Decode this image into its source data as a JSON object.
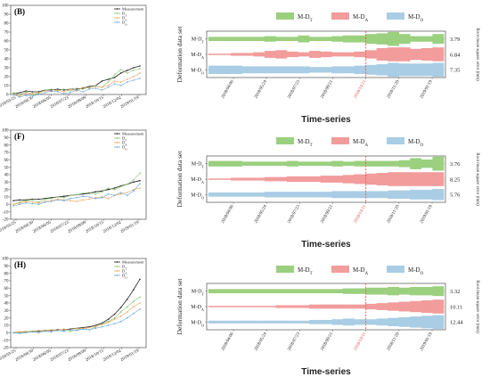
{
  "chart_data": [
    {
      "type": "line",
      "panel_label": "(B)",
      "ylim": [
        0,
        100
      ],
      "yticks": [
        0,
        10,
        20,
        30,
        40,
        50,
        60,
        70,
        80,
        90,
        100
      ],
      "x_ticks": [
        "2018/03/25",
        "2018/04/30",
        "2018/06/05",
        "2018/07/23",
        "2018/09/09",
        "2018/10/15",
        "2018/12/02",
        "2019/01/19"
      ],
      "legend_pos": "top-right",
      "series": [
        {
          "name": "Measurement",
          "color": "#222222",
          "values": [
            1,
            2,
            4,
            3,
            3,
            5,
            5,
            6,
            5,
            6,
            6,
            7,
            9,
            10,
            15,
            17,
            19,
            24,
            27,
            30,
            32
          ]
        },
        {
          "name": "D_T",
          "color": "#8cc06e",
          "values": [
            2,
            0,
            3,
            0,
            1,
            5,
            6,
            4,
            6,
            4,
            7,
            6,
            8,
            10,
            8,
            14,
            22,
            28,
            24,
            27,
            29
          ]
        },
        {
          "name": "D_A",
          "color": "#e8a35a",
          "values": [
            1,
            -2,
            2,
            1,
            2,
            4,
            3,
            5,
            3,
            6,
            4,
            8,
            7,
            9,
            8,
            10,
            15,
            14,
            17,
            20,
            24
          ]
        },
        {
          "name": "D_O",
          "color": "#6aa8d8",
          "values": [
            0,
            -3,
            -1,
            -2,
            0,
            2,
            4,
            3,
            1,
            2,
            5,
            3,
            6,
            7,
            5,
            8,
            12,
            10,
            14,
            16,
            18
          ]
        }
      ]
    },
    {
      "type": "line",
      "panel_label": "(F)",
      "ylim": [
        -20,
        100
      ],
      "yticks": [
        -20,
        -10,
        0,
        10,
        20,
        30,
        40,
        50,
        60,
        70,
        80,
        90,
        100
      ],
      "x_ticks": [
        "2018/03/25",
        "2018/04/30",
        "2018/06/05",
        "2018/07/23",
        "2018/09/09",
        "2018/10/15",
        "2018/12/02",
        "2019/01/19"
      ],
      "legend_pos": "top-right",
      "series": [
        {
          "name": "Measurement",
          "color": "#222222",
          "values": [
            5,
            6,
            6,
            7,
            7,
            8,
            9,
            10,
            11,
            12,
            13,
            14,
            15,
            17,
            18,
            20,
            22,
            25,
            27,
            30,
            32
          ]
        },
        {
          "name": "D_T",
          "color": "#8cc06e",
          "values": [
            0,
            3,
            5,
            6,
            3,
            7,
            8,
            10,
            9,
            12,
            13,
            15,
            16,
            14,
            17,
            22,
            20,
            24,
            27,
            33,
            42
          ]
        },
        {
          "name": "D_A",
          "color": "#e8a35a",
          "values": [
            0,
            2,
            4,
            3,
            2,
            4,
            5,
            7,
            6,
            5,
            4,
            6,
            7,
            9,
            10,
            8,
            12,
            14,
            16,
            20,
            22
          ]
        },
        {
          "name": "D_O",
          "color": "#6aa8d8",
          "values": [
            -2,
            0,
            2,
            1,
            0,
            3,
            4,
            6,
            5,
            8,
            9,
            11,
            10,
            8,
            9,
            14,
            12,
            16,
            12,
            18,
            28
          ]
        }
      ]
    },
    {
      "type": "line",
      "panel_label": "(H)",
      "ylim": [
        -20,
        100
      ],
      "yticks": [
        -20,
        -10,
        0,
        10,
        20,
        30,
        40,
        50,
        60,
        70,
        80,
        90,
        100
      ],
      "x_ticks": [
        "2018/03/25",
        "2018/04/30",
        "2018/06/05",
        "2018/07/23",
        "2018/09/09",
        "2018/10/15",
        "2018/12/02",
        "2019/01/19"
      ],
      "legend_pos": "top-right",
      "series": [
        {
          "name": "Measurement",
          "color": "#222222",
          "values": [
            0,
            1,
            1,
            2,
            2,
            3,
            3,
            4,
            4,
            5,
            6,
            7,
            8,
            10,
            13,
            18,
            25,
            34,
            45,
            58,
            72
          ]
        },
        {
          "name": "D_T",
          "color": "#8cc06e",
          "values": [
            0,
            0,
            1,
            2,
            1,
            3,
            4,
            3,
            5,
            2,
            4,
            6,
            4,
            8,
            12,
            15,
            20,
            28,
            35,
            42,
            48
          ]
        },
        {
          "name": "D_A",
          "color": "#e8a35a",
          "values": [
            0,
            1,
            2,
            1,
            3,
            2,
            4,
            3,
            5,
            4,
            6,
            5,
            7,
            9,
            11,
            14,
            18,
            22,
            28,
            35,
            40
          ]
        },
        {
          "name": "D_O",
          "color": "#6aa8d8",
          "values": [
            0,
            -1,
            0,
            1,
            0,
            2,
            1,
            3,
            2,
            4,
            3,
            5,
            4,
            6,
            8,
            10,
            12,
            15,
            20,
            26,
            32
          ]
        }
      ]
    },
    {
      "type": "area",
      "title": "Time-series",
      "ylabel": "Deformation data set",
      "ylabel_right": "Root mean square error (mm)",
      "legend": [
        {
          "label": "M-D",
          "sub": "T",
          "color": "#9bd07f"
        },
        {
          "label": "M-D",
          "sub": "A",
          "color": "#f29c9c"
        },
        {
          "label": "M-D",
          "sub": "O",
          "color": "#a9cde4"
        }
      ],
      "categories": [
        {
          "label": "M-D",
          "sub": "T",
          "color": "#9bd07f",
          "rmse": "3.79",
          "values": [
            0.3,
            0.3,
            0.3,
            0.3,
            0.3,
            0.4,
            0.3,
            0.3,
            0.5,
            0.3,
            0.3,
            0.4,
            0.5,
            0.5,
            0.7,
            0.8,
            1.0,
            0.7,
            0.4,
            0.4,
            0.7
          ]
        },
        {
          "label": "M-D",
          "sub": "A",
          "color": "#f29c9c",
          "rmse": "6.84",
          "values": [
            0.1,
            0.1,
            0.2,
            0.2,
            0.3,
            0.5,
            0.6,
            0.4,
            0.3,
            0.5,
            0.4,
            0.3,
            0.3,
            0.4,
            0.6,
            0.9,
            1.0,
            1.0,
            0.8,
            0.9,
            1.0
          ]
        },
        {
          "label": "M-D",
          "sub": "O",
          "color": "#a9cde4",
          "rmse": "7.35",
          "values": [
            0.6,
            0.6,
            0.6,
            0.5,
            0.5,
            0.5,
            0.5,
            0.5,
            0.5,
            0.4,
            0.4,
            0.5,
            0.5,
            0.6,
            0.7,
            0.8,
            1.0,
            0.9,
            0.9,
            0.9,
            1.0
          ]
        }
      ],
      "x_ticks": [
        "2018/04/06",
        "2018/05/24",
        "2018/07/23",
        "2018/09/21",
        "2018/10/11",
        "2018/11/20",
        "2019/01/19"
      ],
      "highlight_tick": "2018/10/11"
    },
    {
      "type": "area",
      "title": "Time-series",
      "ylabel": "Deformation data set",
      "ylabel_right": "Root mean square error (mm)",
      "legend": [
        {
          "label": "M-D",
          "sub": "T",
          "color": "#9bd07f"
        },
        {
          "label": "M-D",
          "sub": "A",
          "color": "#f29c9c"
        },
        {
          "label": "M-D",
          "sub": "O",
          "color": "#a9cde4"
        }
      ],
      "categories": [
        {
          "label": "M-D",
          "sub": "T",
          "color": "#9bd07f",
          "rmse": "3.76",
          "values": [
            0.4,
            0.4,
            0.4,
            0.3,
            0.3,
            0.3,
            0.3,
            0.4,
            0.3,
            0.3,
            0.3,
            0.4,
            0.3,
            0.4,
            0.4,
            0.4,
            0.4,
            0.5,
            0.8,
            0.6,
            1.0
          ]
        },
        {
          "label": "M-D",
          "sub": "A",
          "color": "#f29c9c",
          "rmse": "8.25",
          "values": [
            0.1,
            0.1,
            0.2,
            0.2,
            0.2,
            0.3,
            0.3,
            0.4,
            0.4,
            0.4,
            0.5,
            0.5,
            0.6,
            0.7,
            0.8,
            0.9,
            1.0,
            1.0,
            1.0,
            1.0,
            1.0
          ]
        },
        {
          "label": "M-D",
          "sub": "O",
          "color": "#a9cde4",
          "rmse": "5.76",
          "values": [
            0.3,
            0.3,
            0.3,
            0.3,
            0.3,
            0.4,
            0.4,
            0.4,
            0.4,
            0.4,
            0.4,
            0.5,
            0.5,
            0.5,
            0.5,
            0.5,
            0.6,
            0.6,
            0.7,
            0.7,
            0.8
          ]
        }
      ],
      "x_ticks": [
        "2018/04/06",
        "2018/05/24",
        "2018/07/23",
        "2018/09/21",
        "2018/10/11",
        "2018/11/20",
        "2019/01/19"
      ],
      "highlight_tick": "2018/10/11"
    },
    {
      "type": "area",
      "title": "Time-series",
      "ylabel": "Deformation data set",
      "ylabel_right": "Root mean square error (mm)",
      "legend": [
        {
          "label": "M-D",
          "sub": "T",
          "color": "#9bd07f"
        },
        {
          "label": "M-D",
          "sub": "A",
          "color": "#f29c9c"
        },
        {
          "label": "M-D",
          "sub": "O",
          "color": "#a9cde4"
        }
      ],
      "categories": [
        {
          "label": "M-D",
          "sub": "T",
          "color": "#9bd07f",
          "rmse": "3.32",
          "values": [
            0.3,
            0.3,
            0.3,
            0.3,
            0.3,
            0.3,
            0.3,
            0.3,
            0.3,
            0.3,
            0.3,
            0.3,
            0.4,
            0.4,
            0.5,
            0.5,
            0.6,
            0.5,
            0.6,
            0.6,
            0.7
          ]
        },
        {
          "label": "M-D",
          "sub": "A",
          "color": "#f29c9c",
          "rmse": "10.11",
          "values": [
            0.1,
            0.1,
            0.1,
            0.1,
            0.1,
            0.1,
            0.2,
            0.2,
            0.2,
            0.3,
            0.3,
            0.3,
            0.3,
            0.3,
            0.4,
            0.5,
            0.6,
            0.7,
            0.8,
            0.9,
            1.0
          ]
        },
        {
          "label": "M-D",
          "sub": "O",
          "color": "#a9cde4",
          "rmse": "12.44",
          "values": [
            0.2,
            0.2,
            0.2,
            0.2,
            0.2,
            0.2,
            0.2,
            0.2,
            0.2,
            0.3,
            0.3,
            0.4,
            0.5,
            0.4,
            0.4,
            0.5,
            0.6,
            0.7,
            0.8,
            0.9,
            1.0
          ]
        }
      ],
      "x_ticks": [
        "2018/04/06",
        "2018/05/24",
        "2018/07/23",
        "2018/09/21",
        "2018/10/11",
        "2018/11/20",
        "2019/01/19"
      ],
      "highlight_tick": "2018/10/11"
    }
  ]
}
